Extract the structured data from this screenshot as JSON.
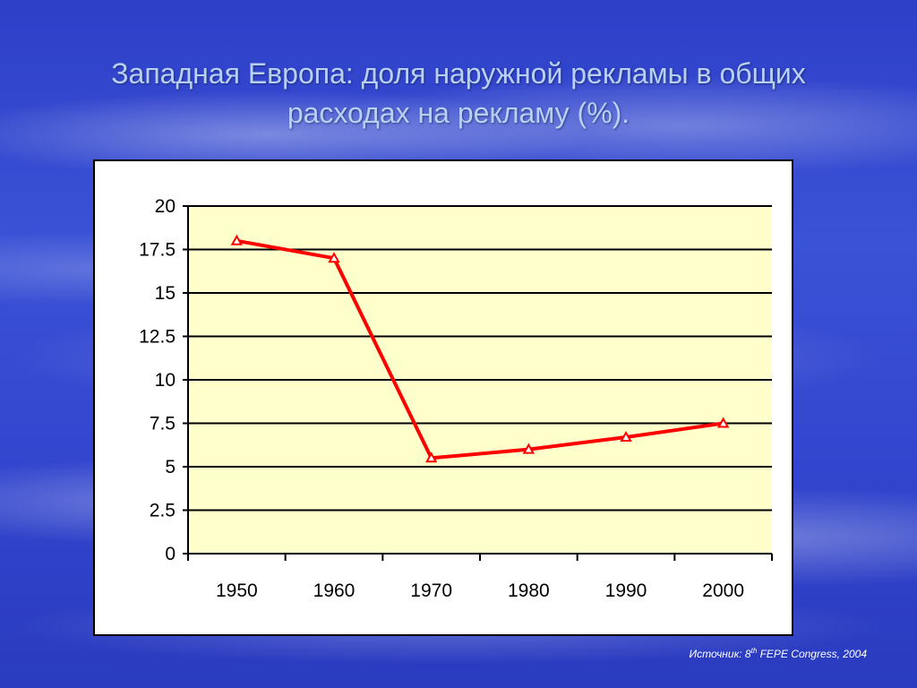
{
  "slide": {
    "title_line1": "Западная Европа: доля наружной рекламы в общих",
    "title_line2": "расходах на рекламу (%).",
    "source_prefix": "Источник: 8",
    "source_sup": "th",
    "source_suffix": " FEPE Congress, 2004"
  },
  "chart_data": {
    "type": "line",
    "title": "",
    "xlabel": "",
    "ylabel": "",
    "categories": [
      "1950",
      "1960",
      "1970",
      "1980",
      "1990",
      "2000"
    ],
    "series": [
      {
        "values": [
          18.0,
          17.0,
          5.5,
          6.0,
          6.7,
          7.5
        ],
        "color": "#ff0000",
        "marker": "triangle"
      }
    ],
    "ylim": [
      0,
      20
    ],
    "yticks": [
      0,
      2.5,
      5,
      7.5,
      10,
      12.5,
      15,
      17.5,
      20
    ],
    "ytick_labels": [
      "0",
      "2.5",
      "5",
      "7.5",
      "10",
      "12.5",
      "15",
      "17.5",
      "20"
    ],
    "grid": true,
    "plot_background": "#ffffcc",
    "gridline_color": "#000000"
  }
}
